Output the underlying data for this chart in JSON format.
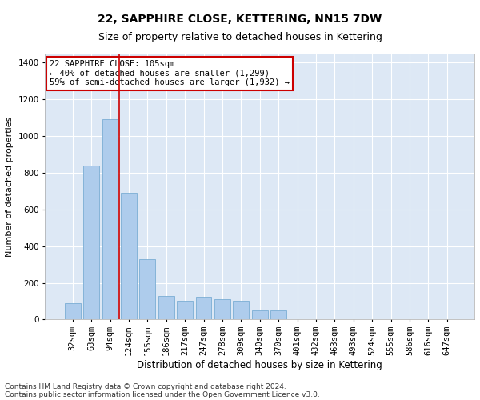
{
  "title1": "22, SAPPHIRE CLOSE, KETTERING, NN15 7DW",
  "title2": "Size of property relative to detached houses in Kettering",
  "xlabel": "Distribution of detached houses by size in Kettering",
  "ylabel": "Number of detached properties",
  "categories": [
    "32sqm",
    "63sqm",
    "94sqm",
    "124sqm",
    "155sqm",
    "186sqm",
    "217sqm",
    "247sqm",
    "278sqm",
    "309sqm",
    "340sqm",
    "370sqm",
    "401sqm",
    "432sqm",
    "463sqm",
    "493sqm",
    "524sqm",
    "555sqm",
    "586sqm",
    "616sqm",
    "647sqm"
  ],
  "values": [
    90,
    840,
    1090,
    690,
    330,
    130,
    100,
    125,
    110,
    100,
    50,
    50,
    0,
    0,
    0,
    0,
    0,
    0,
    0,
    0,
    0
  ],
  "bar_color": "#aeccec",
  "bar_edge_color": "#7aadd4",
  "vline_x": 2.5,
  "vline_color": "#cc0000",
  "annotation_text": "22 SAPPHIRE CLOSE: 105sqm\n← 40% of detached houses are smaller (1,299)\n59% of semi-detached houses are larger (1,932) →",
  "annotation_box_color": "#ffffff",
  "annotation_box_edge": "#cc0000",
  "ylim": [
    0,
    1450
  ],
  "yticks": [
    0,
    200,
    400,
    600,
    800,
    1000,
    1200,
    1400
  ],
  "background_color": "#dde8f5",
  "grid_color": "#ffffff",
  "footer1": "Contains HM Land Registry data © Crown copyright and database right 2024.",
  "footer2": "Contains public sector information licensed under the Open Government Licence v3.0.",
  "title1_fontsize": 10,
  "title2_fontsize": 9,
  "xlabel_fontsize": 8.5,
  "ylabel_fontsize": 8,
  "tick_fontsize": 7.5,
  "footer_fontsize": 6.5,
  "annot_fontsize": 7.5
}
